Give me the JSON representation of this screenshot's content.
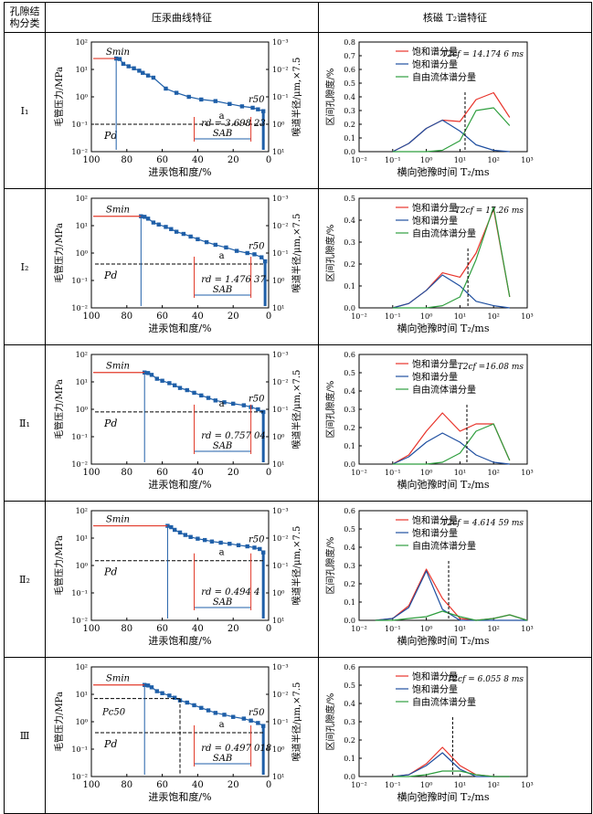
{
  "header": {
    "col0_line1": "孔隙结",
    "col0_line2": "构分类",
    "col1": "压汞曲线特征",
    "col2": "核磁 T₂谱特征"
  },
  "mercury_axis": {
    "ylabel": "毛管压力/MPa",
    "y2label": "喉道半径/μm,×7.5",
    "xlabel": "进汞饱和度/%",
    "xticks": [
      "100",
      "80",
      "60",
      "40",
      "20",
      "0"
    ],
    "yticks": [
      "10²",
      "10¹",
      "10⁰",
      "10⁻¹",
      "10⁻²"
    ],
    "y2ticks": [
      "10⁻³",
      "10⁻²",
      "10⁻¹",
      "10⁰",
      "10¹"
    ],
    "smin_label": "Smin",
    "a_label": "a",
    "pd_label": "Pd",
    "sab_label": "SAB",
    "r50_label": "r50"
  },
  "nmr_axis": {
    "ylabel": "区间孔隙度/%",
    "xlabel": "横向弛豫时间 T₂/ms",
    "xticks": [
      "10⁻²",
      "10⁻¹",
      "10⁰",
      "10¹",
      "10²",
      "10³"
    ],
    "legend": [
      "饱和谱分量",
      "饱和谱分量",
      "自由流体谱分量"
    ],
    "colors": {
      "saturated": "#e8332a",
      "centrifuged": "#1f4fa0",
      "free": "#2e9e3e"
    }
  },
  "chart_data": [
    {
      "type": "line",
      "class_label": "Ⅰ₁",
      "mercury": {
        "rd_text": "rd = 3.698 23",
        "pd_mpa": 0.1,
        "pc50_mpa": null,
        "curve": [
          [
            86,
            25
          ],
          [
            84,
            24
          ],
          [
            82,
            16
          ],
          [
            79,
            13
          ],
          [
            76,
            11
          ],
          [
            73,
            9
          ],
          [
            71,
            7.5
          ],
          [
            68,
            6
          ],
          [
            65,
            5
          ],
          [
            58,
            2
          ],
          [
            52,
            1.4
          ],
          [
            45,
            1
          ],
          [
            38,
            0.8
          ],
          [
            30,
            0.7
          ],
          [
            22,
            0.55
          ],
          [
            15,
            0.45
          ],
          [
            9,
            0.4
          ],
          [
            6,
            0.35
          ],
          [
            3,
            0.3
          ]
        ],
        "xlim": [
          100,
          0
        ],
        "ylim": [
          0.01,
          100
        ]
      },
      "nmr": {
        "t2cutoff_text": "T2cf = 14.174 6 ms",
        "t2cutoff_ms": 14.17,
        "ylim": [
          0,
          0.8
        ],
        "yticks": [
          "0.0",
          "0.1",
          "0.2",
          "0.3",
          "0.4",
          "0.5",
          "0.6",
          "0.7",
          "0.8"
        ],
        "x": [
          0.1,
          0.3,
          1,
          3,
          10,
          30,
          100,
          300
        ],
        "saturated": [
          0,
          0.06,
          0.17,
          0.23,
          0.22,
          0.38,
          0.43,
          0.25
        ],
        "centrifuged": [
          0,
          0.06,
          0.17,
          0.23,
          0.15,
          0.05,
          0.01,
          0
        ],
        "free": [
          0,
          0,
          0,
          0.01,
          0.08,
          0.3,
          0.32,
          0.19
        ]
      }
    },
    {
      "type": "line",
      "class_label": "Ⅰ₂",
      "mercury": {
        "rd_text": "rd = 1.476 37",
        "pd_mpa": 0.4,
        "pc50_mpa": null,
        "curve": [
          [
            72,
            22
          ],
          [
            70,
            21
          ],
          [
            68,
            18
          ],
          [
            65,
            13
          ],
          [
            62,
            11
          ],
          [
            58,
            9
          ],
          [
            55,
            7.5
          ],
          [
            52,
            6
          ],
          [
            48,
            5
          ],
          [
            44,
            4
          ],
          [
            40,
            3.2
          ],
          [
            35,
            2.5
          ],
          [
            30,
            2
          ],
          [
            24,
            1.6
          ],
          [
            18,
            1.2
          ],
          [
            12,
            1
          ],
          [
            8,
            0.9
          ],
          [
            4,
            0.7
          ],
          [
            2,
            0.5
          ]
        ],
        "xlim": [
          100,
          0
        ],
        "ylim": [
          0.01,
          100
        ]
      },
      "nmr": {
        "t2cutoff_text": "T2cf = 17.26 ms",
        "t2cutoff_ms": 17.26,
        "ylim": [
          0,
          0.5
        ],
        "yticks": [
          "0.0",
          "0.1",
          "0.2",
          "0.3",
          "0.4",
          "0.5"
        ],
        "x": [
          0.1,
          0.3,
          1,
          3,
          10,
          30,
          100,
          300
        ],
        "saturated": [
          0,
          0.02,
          0.08,
          0.16,
          0.14,
          0.25,
          0.45,
          0.05
        ],
        "centrifuged": [
          0,
          0.02,
          0.08,
          0.15,
          0.1,
          0.03,
          0.01,
          0
        ],
        "free": [
          0,
          0,
          0,
          0.01,
          0.05,
          0.22,
          0.46,
          0.05
        ]
      }
    },
    {
      "type": "line",
      "class_label": "Ⅱ₁",
      "mercury": {
        "rd_text": "rd = 0.757 04",
        "pd_mpa": 0.8,
        "pc50_mpa": null,
        "curve": [
          [
            70,
            22
          ],
          [
            68,
            21
          ],
          [
            66,
            18
          ],
          [
            63,
            13
          ],
          [
            60,
            11
          ],
          [
            56,
            9
          ],
          [
            53,
            7.5
          ],
          [
            50,
            6
          ],
          [
            46,
            5
          ],
          [
            42,
            4
          ],
          [
            38,
            3.2
          ],
          [
            34,
            2.6
          ],
          [
            30,
            2.1
          ],
          [
            25,
            1.8
          ],
          [
            20,
            1.6
          ],
          [
            14,
            1.4
          ],
          [
            10,
            1.2
          ],
          [
            6,
            1
          ],
          [
            3,
            0.8
          ]
        ],
        "xlim": [
          100,
          0
        ],
        "ylim": [
          0.01,
          100
        ]
      },
      "nmr": {
        "t2cutoff_text": "T2cf =16.08 ms",
        "t2cutoff_ms": 16.08,
        "ylim": [
          0,
          0.6
        ],
        "yticks": [
          "0.0",
          "0.1",
          "0.2",
          "0.3",
          "0.4",
          "0.5",
          "0.6"
        ],
        "x": [
          0.1,
          0.3,
          1,
          3,
          10,
          30,
          100,
          300
        ],
        "saturated": [
          0,
          0.05,
          0.18,
          0.28,
          0.18,
          0.22,
          0.22,
          0.02
        ],
        "centrifuged": [
          0,
          0.04,
          0.12,
          0.17,
          0.12,
          0.05,
          0.01,
          0
        ],
        "free": [
          0,
          0,
          0,
          0.01,
          0.06,
          0.18,
          0.22,
          0.02
        ]
      }
    },
    {
      "type": "line",
      "class_label": "Ⅱ₂",
      "mercury": {
        "rd_text": "rd = 0.494 4",
        "pd_mpa": 1.5,
        "pc50_mpa": null,
        "curve": [
          [
            57,
            28
          ],
          [
            55,
            25
          ],
          [
            53,
            20
          ],
          [
            50,
            16
          ],
          [
            47,
            13
          ],
          [
            44,
            11
          ],
          [
            40,
            9.5
          ],
          [
            36,
            8.5
          ],
          [
            32,
            7.5
          ],
          [
            27,
            6.8
          ],
          [
            22,
            6.2
          ],
          [
            17,
            5.5
          ],
          [
            12,
            5
          ],
          [
            8,
            4.5
          ],
          [
            5,
            4
          ],
          [
            3,
            3
          ]
        ],
        "xlim": [
          100,
          0
        ],
        "ylim": [
          0.01,
          100
        ]
      },
      "nmr": {
        "t2cutoff_text": "T2cf = 4.614 59 ms",
        "t2cutoff_ms": 4.61,
        "ylim": [
          0,
          0.6
        ],
        "yticks": [
          "0.0",
          "0.1",
          "0.2",
          "0.3",
          "0.4",
          "0.5",
          "0.6"
        ],
        "x": [
          0.03,
          0.1,
          0.3,
          1,
          3,
          10,
          30,
          100,
          300,
          1000
        ],
        "saturated": [
          0,
          0.01,
          0.08,
          0.28,
          0.12,
          0.01,
          0,
          0.01,
          0.03,
          0
        ],
        "centrifuged": [
          0,
          0.01,
          0.07,
          0.27,
          0.06,
          0,
          0,
          0,
          0,
          0
        ],
        "free": [
          0,
          0,
          0.01,
          0.02,
          0.05,
          0.02,
          0,
          0.01,
          0.03,
          0
        ]
      }
    },
    {
      "type": "line",
      "class_label": "Ⅲ",
      "mercury": {
        "rd_text": "rd = 0.497 018",
        "pd_mpa": 0.4,
        "pc50_mpa": 7,
        "curve": [
          [
            70,
            22
          ],
          [
            68,
            21
          ],
          [
            66,
            18
          ],
          [
            63,
            13
          ],
          [
            60,
            11
          ],
          [
            56,
            9
          ],
          [
            53,
            7.5
          ],
          [
            50,
            6
          ],
          [
            46,
            5
          ],
          [
            42,
            4
          ],
          [
            38,
            3.2
          ],
          [
            34,
            2.6
          ],
          [
            30,
            2.1
          ],
          [
            25,
            1.8
          ],
          [
            20,
            1.5
          ],
          [
            14,
            1.3
          ],
          [
            10,
            1.1
          ],
          [
            6,
            0.9
          ],
          [
            3,
            0.7
          ]
        ],
        "xlim": [
          100,
          0
        ],
        "ylim": [
          0.01,
          100
        ]
      },
      "nmr": {
        "t2cutoff_text": "T2cf = 6.055 8 ms",
        "t2cutoff_ms": 6.06,
        "ylim": [
          0,
          0.6
        ],
        "yticks": [
          "0.0",
          "0.1",
          "0.2",
          "0.3",
          "0.4",
          "0.5",
          "0.6"
        ],
        "x": [
          0.1,
          0.3,
          1,
          3,
          10,
          30,
          100,
          300
        ],
        "saturated": [
          0,
          0.01,
          0.07,
          0.16,
          0.06,
          0.01,
          0,
          0
        ],
        "centrifuged": [
          0,
          0.01,
          0.06,
          0.13,
          0.04,
          0,
          0,
          0
        ],
        "free": [
          0,
          0,
          0.01,
          0.03,
          0.03,
          0.01,
          0,
          0
        ]
      },
      "pc50_label": "Pc50"
    }
  ]
}
